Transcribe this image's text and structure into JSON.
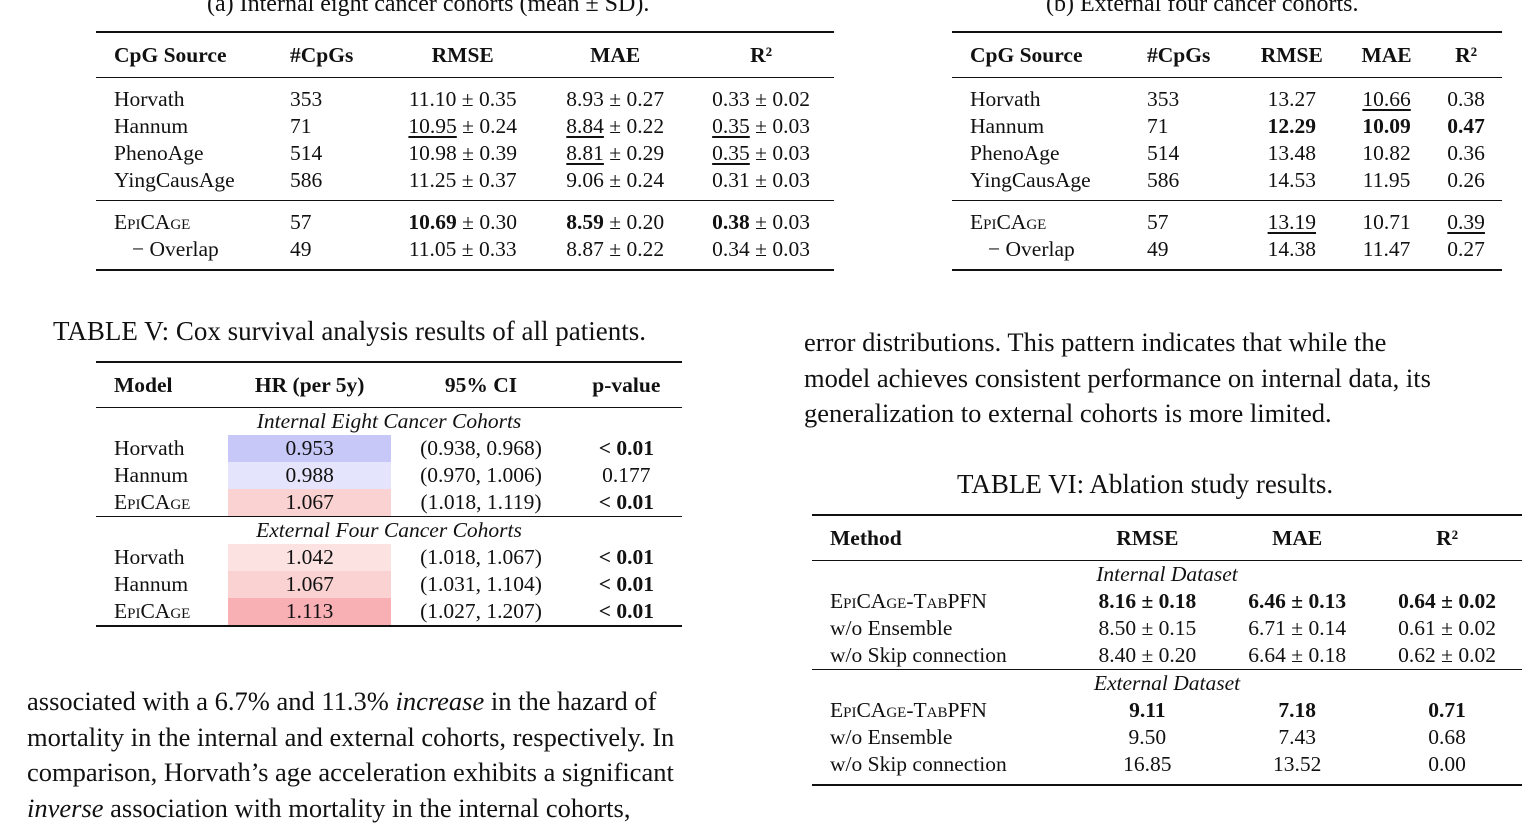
{
  "table_a": {
    "caption": "(a) Internal eight cancer cohorts (mean ± SD).",
    "headers": [
      "CpG Source",
      "#CpGs",
      "RMSE",
      "MAE",
      "R²"
    ],
    "rows": [
      {
        "name": "Horvath",
        "n": "353",
        "rmse": "11.10",
        "rmse_sd": "± 0.35",
        "mae": "8.93",
        "mae_sd": "± 0.27",
        "r2": "0.33",
        "r2_sd": "± 0.02"
      },
      {
        "name": "Hannum",
        "n": "71",
        "rmse": "10.95",
        "rmse_sd": "± 0.24",
        "mae": "8.84",
        "mae_sd": "± 0.22",
        "r2": "0.35",
        "r2_sd": "± 0.03"
      },
      {
        "name": "PhenoAge",
        "n": "514",
        "rmse": "10.98",
        "rmse_sd": "± 0.39",
        "mae": "8.81",
        "mae_sd": "± 0.29",
        "r2": "0.35",
        "r2_sd": "± 0.03"
      },
      {
        "name": "YingCausAge",
        "n": "586",
        "rmse": "11.25",
        "rmse_sd": "± 0.37",
        "mae": "9.06",
        "mae_sd": "± 0.24",
        "r2": "0.31",
        "r2_sd": "± 0.03"
      },
      {
        "name": "EpiCAge",
        "n": "57",
        "rmse": "10.69",
        "rmse_sd": "± 0.30",
        "mae": "8.59",
        "mae_sd": "± 0.20",
        "r2": "0.38",
        "r2_sd": "± 0.03"
      },
      {
        "name": "− Overlap",
        "n": "49",
        "rmse": "11.05",
        "rmse_sd": "± 0.33",
        "mae": "8.87",
        "mae_sd": "± 0.22",
        "r2": "0.34",
        "r2_sd": "± 0.03"
      }
    ]
  },
  "table_b": {
    "caption": "(b) External four cancer cohorts.",
    "headers": [
      "CpG Source",
      "#CpGs",
      "RMSE",
      "MAE",
      "R²"
    ],
    "rows": [
      {
        "name": "Horvath",
        "n": "353",
        "rmse": "13.27",
        "mae": "10.66",
        "r2": "0.38"
      },
      {
        "name": "Hannum",
        "n": "71",
        "rmse": "12.29",
        "mae": "10.09",
        "r2": "0.47"
      },
      {
        "name": "PhenoAge",
        "n": "514",
        "rmse": "13.48",
        "mae": "10.82",
        "r2": "0.36"
      },
      {
        "name": "YingCausAge",
        "n": "586",
        "rmse": "14.53",
        "mae": "11.95",
        "r2": "0.26"
      },
      {
        "name": "EpiCAge",
        "n": "57",
        "rmse": "13.19",
        "mae": "10.71",
        "r2": "0.39"
      },
      {
        "name": "− Overlap",
        "n": "49",
        "rmse": "14.38",
        "mae": "11.47",
        "r2": "0.27"
      }
    ]
  },
  "table_v": {
    "caption": "TABLE V: Cox survival analysis results of all patients.",
    "headers": [
      "Model",
      "HR (per 5y)",
      "95% CI",
      "p-value"
    ],
    "group_internal": "Internal Eight Cancer Cohorts",
    "group_external": "External Four Cancer Cohorts",
    "internal": [
      {
        "model": "Horvath",
        "hr": "0.953",
        "ci": "(0.938, 0.968)",
        "p": "< 0.01",
        "color": "#c8c8f8"
      },
      {
        "model": "Hannum",
        "hr": "0.988",
        "ci": "(0.970, 1.006)",
        "p": "0.177",
        "color": "#e4e4fc"
      },
      {
        "model": "EpiCAge",
        "hr": "1.067",
        "ci": "(1.018, 1.119)",
        "p": "< 0.01",
        "color": "#fbd2d2"
      }
    ],
    "external": [
      {
        "model": "Horvath",
        "hr": "1.042",
        "ci": "(1.018, 1.067)",
        "p": "< 0.01",
        "color": "#fde2e2"
      },
      {
        "model": "Hannum",
        "hr": "1.067",
        "ci": "(1.031, 1.104)",
        "p": "< 0.01",
        "color": "#fbd2d2"
      },
      {
        "model": "EpiCAge",
        "hr": "1.113",
        "ci": "(1.027, 1.207)",
        "p": "< 0.01",
        "color": "#f8b0b4"
      }
    ]
  },
  "table_vi": {
    "caption": "TABLE VI: Ablation study results.",
    "headers": [
      "Method",
      "RMSE",
      "MAE",
      "R²"
    ],
    "group_internal": "Internal Dataset",
    "group_external": "External Dataset",
    "internal": [
      {
        "method": "EpiCAge-TabPFN",
        "rmse": "8.16 ± 0.18",
        "mae": "6.46 ± 0.13",
        "r2": "0.64 ± 0.02"
      },
      {
        "method": "w/o Ensemble",
        "rmse": "8.50 ± 0.15",
        "mae": "6.71 ± 0.14",
        "r2": "0.61 ± 0.02"
      },
      {
        "method": "w/o Skip connection",
        "rmse": "8.40 ± 0.20",
        "mae": "6.64 ± 0.18",
        "r2": "0.62 ± 0.02"
      }
    ],
    "external": [
      {
        "method": "EpiCAge-TabPFN",
        "rmse": "9.11",
        "mae": "7.18",
        "r2": "0.71"
      },
      {
        "method": "w/o Ensemble",
        "rmse": "9.50",
        "mae": "7.43",
        "r2": "0.68"
      },
      {
        "method": "w/o Skip connection",
        "rmse": "16.85",
        "mae": "13.52",
        "r2": "0.00"
      }
    ]
  },
  "para_right": {
    "line1": "error distributions. This pattern indicates that while the",
    "line2": "model achieves consistent performance on internal data, its",
    "line3": "generalization to external cohorts is more limited."
  },
  "para_left": {
    "l1a": "associated with a 6.7% and 11.3% ",
    "l1b": "increase",
    "l1c": " in the hazard of",
    "l2": "mortality in the internal and external cohorts, respectively. In",
    "l3": "comparison, Horvath’s age acceleration exhibits a significant",
    "l4a": "inverse",
    "l4b": " association with mortality in the internal cohorts,"
  }
}
